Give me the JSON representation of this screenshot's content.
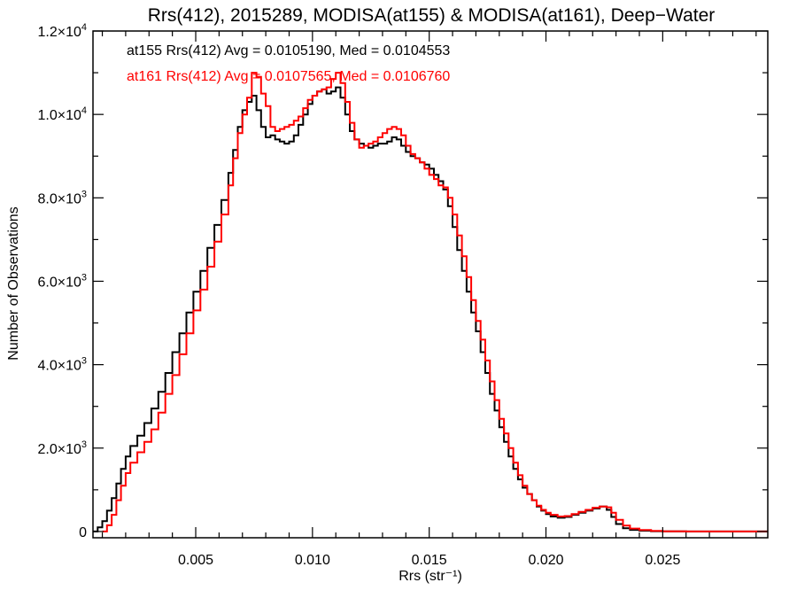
{
  "chart_data": {
    "type": "line",
    "title": "Rrs(412), 2015289, MODISA(at155) & MODISA(at161), Deep−Water",
    "xlabel": "Rrs (str⁻¹)",
    "ylabel": "Number of Observations",
    "xlim": [
      0.0006,
      0.0295
    ],
    "ylim": [
      -150,
      12000
    ],
    "xticks": [
      {
        "value": 0.005,
        "label": "0.005"
      },
      {
        "value": 0.01,
        "label": "0.010"
      },
      {
        "value": 0.015,
        "label": "0.015"
      },
      {
        "value": 0.02,
        "label": "0.020"
      },
      {
        "value": 0.025,
        "label": "0.025"
      }
    ],
    "yticks": [
      {
        "value": 0,
        "label": "0",
        "exp": ""
      },
      {
        "value": 2000,
        "label": "2.0×10",
        "exp": "3"
      },
      {
        "value": 4000,
        "label": "4.0×10",
        "exp": "3"
      },
      {
        "value": 6000,
        "label": "6.0×10",
        "exp": "3"
      },
      {
        "value": 8000,
        "label": "8.0×10",
        "exp": "3"
      },
      {
        "value": 10000,
        "label": "1.0×10",
        "exp": "4"
      },
      {
        "value": 12000,
        "label": "1.2×10",
        "exp": "4"
      }
    ],
    "grid": false,
    "step": true,
    "annotations": [
      {
        "text": "at155 Rrs(412) Avg = 0.0105190, Med = 0.0104553",
        "color": "#000000"
      },
      {
        "text": "at161 Rrs(412) Avg = 0.0107565, Med = 0.0106760",
        "color": "#ff0000"
      }
    ],
    "series": [
      {
        "color": "#000000",
        "points": [
          [
            0.0006,
            0
          ],
          [
            0.0008,
            100
          ],
          [
            0.001,
            250
          ],
          [
            0.0012,
            500
          ],
          [
            0.0014,
            800
          ],
          [
            0.0016,
            1150
          ],
          [
            0.0018,
            1500
          ],
          [
            0.002,
            1800
          ],
          [
            0.0022,
            2050
          ],
          [
            0.0025,
            2300
          ],
          [
            0.0028,
            2600
          ],
          [
            0.0031,
            2950
          ],
          [
            0.0034,
            3350
          ],
          [
            0.0037,
            3800
          ],
          [
            0.004,
            4300
          ],
          [
            0.0043,
            4750
          ],
          [
            0.0046,
            5250
          ],
          [
            0.0049,
            5750
          ],
          [
            0.0052,
            6250
          ],
          [
            0.0055,
            6800
          ],
          [
            0.0058,
            7350
          ],
          [
            0.0061,
            7950
          ],
          [
            0.0064,
            8600
          ],
          [
            0.0066,
            9150
          ],
          [
            0.0068,
            9700
          ],
          [
            0.007,
            10100
          ],
          [
            0.0072,
            10300
          ],
          [
            0.0074,
            10450
          ],
          [
            0.0076,
            10100
          ],
          [
            0.0078,
            9700
          ],
          [
            0.008,
            9450
          ],
          [
            0.0082,
            9500
          ],
          [
            0.0084,
            9400
          ],
          [
            0.0086,
            9350
          ],
          [
            0.0088,
            9300
          ],
          [
            0.009,
            9350
          ],
          [
            0.0092,
            9500
          ],
          [
            0.0094,
            9750
          ],
          [
            0.0096,
            10000
          ],
          [
            0.0098,
            10250
          ],
          [
            0.01,
            10450
          ],
          [
            0.0102,
            10550
          ],
          [
            0.0104,
            10600
          ],
          [
            0.0106,
            10500
          ],
          [
            0.0108,
            10550
          ],
          [
            0.011,
            10650
          ],
          [
            0.0112,
            10400
          ],
          [
            0.0114,
            10000
          ],
          [
            0.0116,
            9600
          ],
          [
            0.0118,
            9400
          ],
          [
            0.012,
            9300
          ],
          [
            0.0122,
            9250
          ],
          [
            0.0124,
            9200
          ],
          [
            0.0126,
            9250
          ],
          [
            0.0128,
            9300
          ],
          [
            0.013,
            9300
          ],
          [
            0.0132,
            9350
          ],
          [
            0.0134,
            9450
          ],
          [
            0.0136,
            9400
          ],
          [
            0.0138,
            9250
          ],
          [
            0.014,
            9100
          ],
          [
            0.0142,
            9000
          ],
          [
            0.0144,
            8950
          ],
          [
            0.0146,
            8850
          ],
          [
            0.0148,
            8800
          ],
          [
            0.015,
            8700
          ],
          [
            0.0152,
            8550
          ],
          [
            0.0154,
            8400
          ],
          [
            0.0156,
            8200
          ],
          [
            0.0158,
            7800
          ],
          [
            0.016,
            7300
          ],
          [
            0.0162,
            6750
          ],
          [
            0.0164,
            6250
          ],
          [
            0.0166,
            5750
          ],
          [
            0.0168,
            5250
          ],
          [
            0.017,
            4800
          ],
          [
            0.0172,
            4300
          ],
          [
            0.0174,
            3800
          ],
          [
            0.0176,
            3300
          ],
          [
            0.0178,
            2900
          ],
          [
            0.018,
            2500
          ],
          [
            0.0182,
            2150
          ],
          [
            0.0184,
            1800
          ],
          [
            0.0186,
            1500
          ],
          [
            0.0188,
            1250
          ],
          [
            0.019,
            1050
          ],
          [
            0.0192,
            900
          ],
          [
            0.0194,
            750
          ],
          [
            0.0196,
            600
          ],
          [
            0.0198,
            500
          ],
          [
            0.02,
            420
          ],
          [
            0.0202,
            360
          ],
          [
            0.0205,
            330
          ],
          [
            0.0208,
            350
          ],
          [
            0.0211,
            400
          ],
          [
            0.0214,
            450
          ],
          [
            0.0217,
            500
          ],
          [
            0.022,
            550
          ],
          [
            0.0223,
            600
          ],
          [
            0.0226,
            520
          ],
          [
            0.0228,
            350
          ],
          [
            0.023,
            180
          ],
          [
            0.0233,
            80
          ],
          [
            0.0236,
            40
          ],
          [
            0.024,
            20
          ],
          [
            0.0245,
            8
          ],
          [
            0.025,
            3
          ],
          [
            0.026,
            0
          ],
          [
            0.0295,
            0
          ]
        ]
      },
      {
        "color": "#ff0000",
        "points": [
          [
            0.001,
            0
          ],
          [
            0.0012,
            150
          ],
          [
            0.0014,
            400
          ],
          [
            0.0016,
            750
          ],
          [
            0.0018,
            1100
          ],
          [
            0.002,
            1400
          ],
          [
            0.0022,
            1650
          ],
          [
            0.0025,
            1900
          ],
          [
            0.0028,
            2150
          ],
          [
            0.0031,
            2450
          ],
          [
            0.0034,
            2850
          ],
          [
            0.0037,
            3300
          ],
          [
            0.004,
            3750
          ],
          [
            0.0043,
            4250
          ],
          [
            0.0046,
            4750
          ],
          [
            0.0049,
            5300
          ],
          [
            0.0052,
            5800
          ],
          [
            0.0055,
            6350
          ],
          [
            0.0058,
            6950
          ],
          [
            0.0061,
            7600
          ],
          [
            0.0064,
            8300
          ],
          [
            0.0066,
            8950
          ],
          [
            0.0068,
            9550
          ],
          [
            0.007,
            10000
          ],
          [
            0.0072,
            10400
          ],
          [
            0.0074,
            11000
          ],
          [
            0.0076,
            10900
          ],
          [
            0.0078,
            10500
          ],
          [
            0.008,
            10200
          ],
          [
            0.0082,
            9700
          ],
          [
            0.0084,
            9600
          ],
          [
            0.0086,
            9650
          ],
          [
            0.0088,
            9700
          ],
          [
            0.009,
            9750
          ],
          [
            0.0092,
            9850
          ],
          [
            0.0094,
            9950
          ],
          [
            0.0096,
            10150
          ],
          [
            0.0098,
            10350
          ],
          [
            0.01,
            10450
          ],
          [
            0.0102,
            10550
          ],
          [
            0.0104,
            10600
          ],
          [
            0.0106,
            10650
          ],
          [
            0.0108,
            10850
          ],
          [
            0.011,
            11000
          ],
          [
            0.0112,
            10750
          ],
          [
            0.0114,
            10300
          ],
          [
            0.0116,
            9800
          ],
          [
            0.0118,
            9400
          ],
          [
            0.012,
            9200
          ],
          [
            0.0122,
            9250
          ],
          [
            0.0124,
            9300
          ],
          [
            0.0126,
            9350
          ],
          [
            0.0128,
            9450
          ],
          [
            0.013,
            9550
          ],
          [
            0.0132,
            9650
          ],
          [
            0.0134,
            9700
          ],
          [
            0.0136,
            9650
          ],
          [
            0.0138,
            9500
          ],
          [
            0.014,
            9250
          ],
          [
            0.0142,
            9050
          ],
          [
            0.0144,
            8950
          ],
          [
            0.0146,
            8850
          ],
          [
            0.0148,
            8700
          ],
          [
            0.015,
            8550
          ],
          [
            0.0152,
            8450
          ],
          [
            0.0154,
            8300
          ],
          [
            0.0156,
            8250
          ],
          [
            0.0158,
            8000
          ],
          [
            0.016,
            7600
          ],
          [
            0.0162,
            7100
          ],
          [
            0.0164,
            6600
          ],
          [
            0.0166,
            6100
          ],
          [
            0.0168,
            5550
          ],
          [
            0.017,
            5050
          ],
          [
            0.0172,
            4600
          ],
          [
            0.0174,
            4100
          ],
          [
            0.0176,
            3600
          ],
          [
            0.0178,
            3150
          ],
          [
            0.018,
            2700
          ],
          [
            0.0182,
            2350
          ],
          [
            0.0184,
            2000
          ],
          [
            0.0186,
            1650
          ],
          [
            0.0188,
            1350
          ],
          [
            0.019,
            1100
          ],
          [
            0.0192,
            900
          ],
          [
            0.0194,
            750
          ],
          [
            0.0196,
            620
          ],
          [
            0.0198,
            520
          ],
          [
            0.02,
            450
          ],
          [
            0.0202,
            400
          ],
          [
            0.0205,
            360
          ],
          [
            0.0208,
            370
          ],
          [
            0.0211,
            420
          ],
          [
            0.0214,
            470
          ],
          [
            0.0217,
            520
          ],
          [
            0.022,
            570
          ],
          [
            0.0223,
            600
          ],
          [
            0.0226,
            580
          ],
          [
            0.0228,
            450
          ],
          [
            0.023,
            280
          ],
          [
            0.0233,
            140
          ],
          [
            0.0236,
            70
          ],
          [
            0.024,
            35
          ],
          [
            0.0245,
            15
          ],
          [
            0.025,
            5
          ],
          [
            0.026,
            0
          ],
          [
            0.0295,
            0
          ]
        ]
      }
    ]
  }
}
